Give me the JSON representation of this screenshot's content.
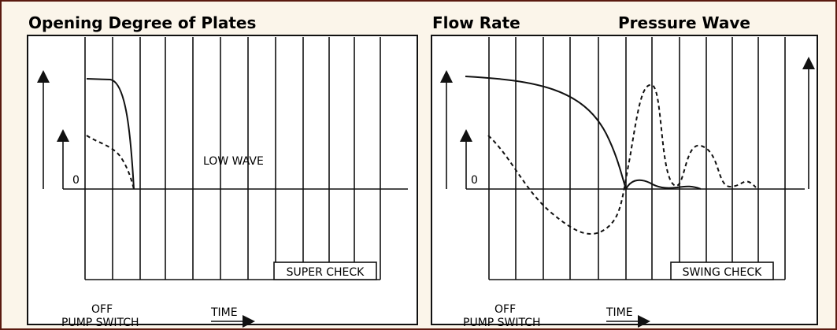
{
  "headers": {
    "left": "Opening Degree of Plates",
    "flow": "Flow Rate",
    "pressure": "Pressure Wave"
  },
  "left_panel": {
    "zero": "0",
    "low_wave": "LOW WAVE",
    "check": "SUPER CHECK",
    "off": "OFF",
    "pump": "PUMP SWITCH",
    "time": "TIME"
  },
  "right_panel": {
    "zero": "0",
    "check": "SWING CHECK",
    "off": "OFF",
    "pump": "PUMP SWITCH",
    "time": "TIME"
  }
}
